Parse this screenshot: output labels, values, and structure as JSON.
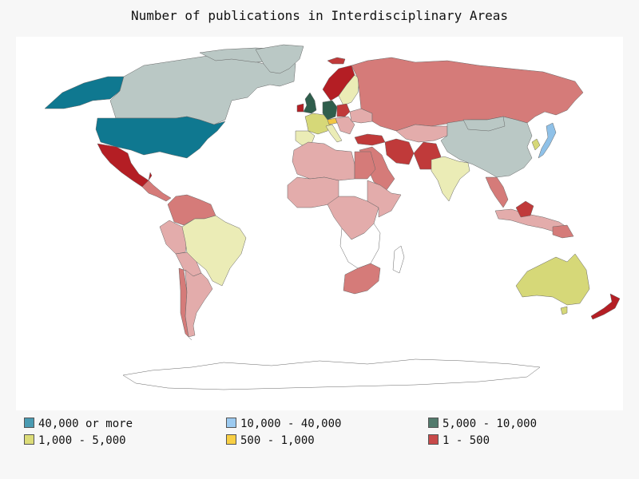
{
  "title": "Number of publications in Interdisciplinary Areas",
  "colors": {
    "c40k": "#0f7890",
    "c10k": "#8fc1e8",
    "c5k": "#2f5e4c",
    "c1k": "#d6d878",
    "c500": "#f3c644",
    "c1": "#c03a3a",
    "c1a": "#b41e24",
    "c1b": "#d57b79",
    "c1c": "#e3acab",
    "c3k": "#ebecb6",
    "none": "#bac8c5",
    "blank": "#ffffff"
  },
  "legend": [
    {
      "label": "40,000 or more",
      "color": "#4a9bb2"
    },
    {
      "label": "10,000 - 40,000",
      "color": "#9ccaf0"
    },
    {
      "label": "5,000 - 10,000",
      "color": "#527a6c"
    },
    {
      "label": "1,000 - 5,000",
      "color": "#dcdc78"
    },
    {
      "label": "500 - 1,000",
      "color": "#f8cf44"
    },
    {
      "label": "1 - 500",
      "color": "#c84a4a"
    }
  ]
}
